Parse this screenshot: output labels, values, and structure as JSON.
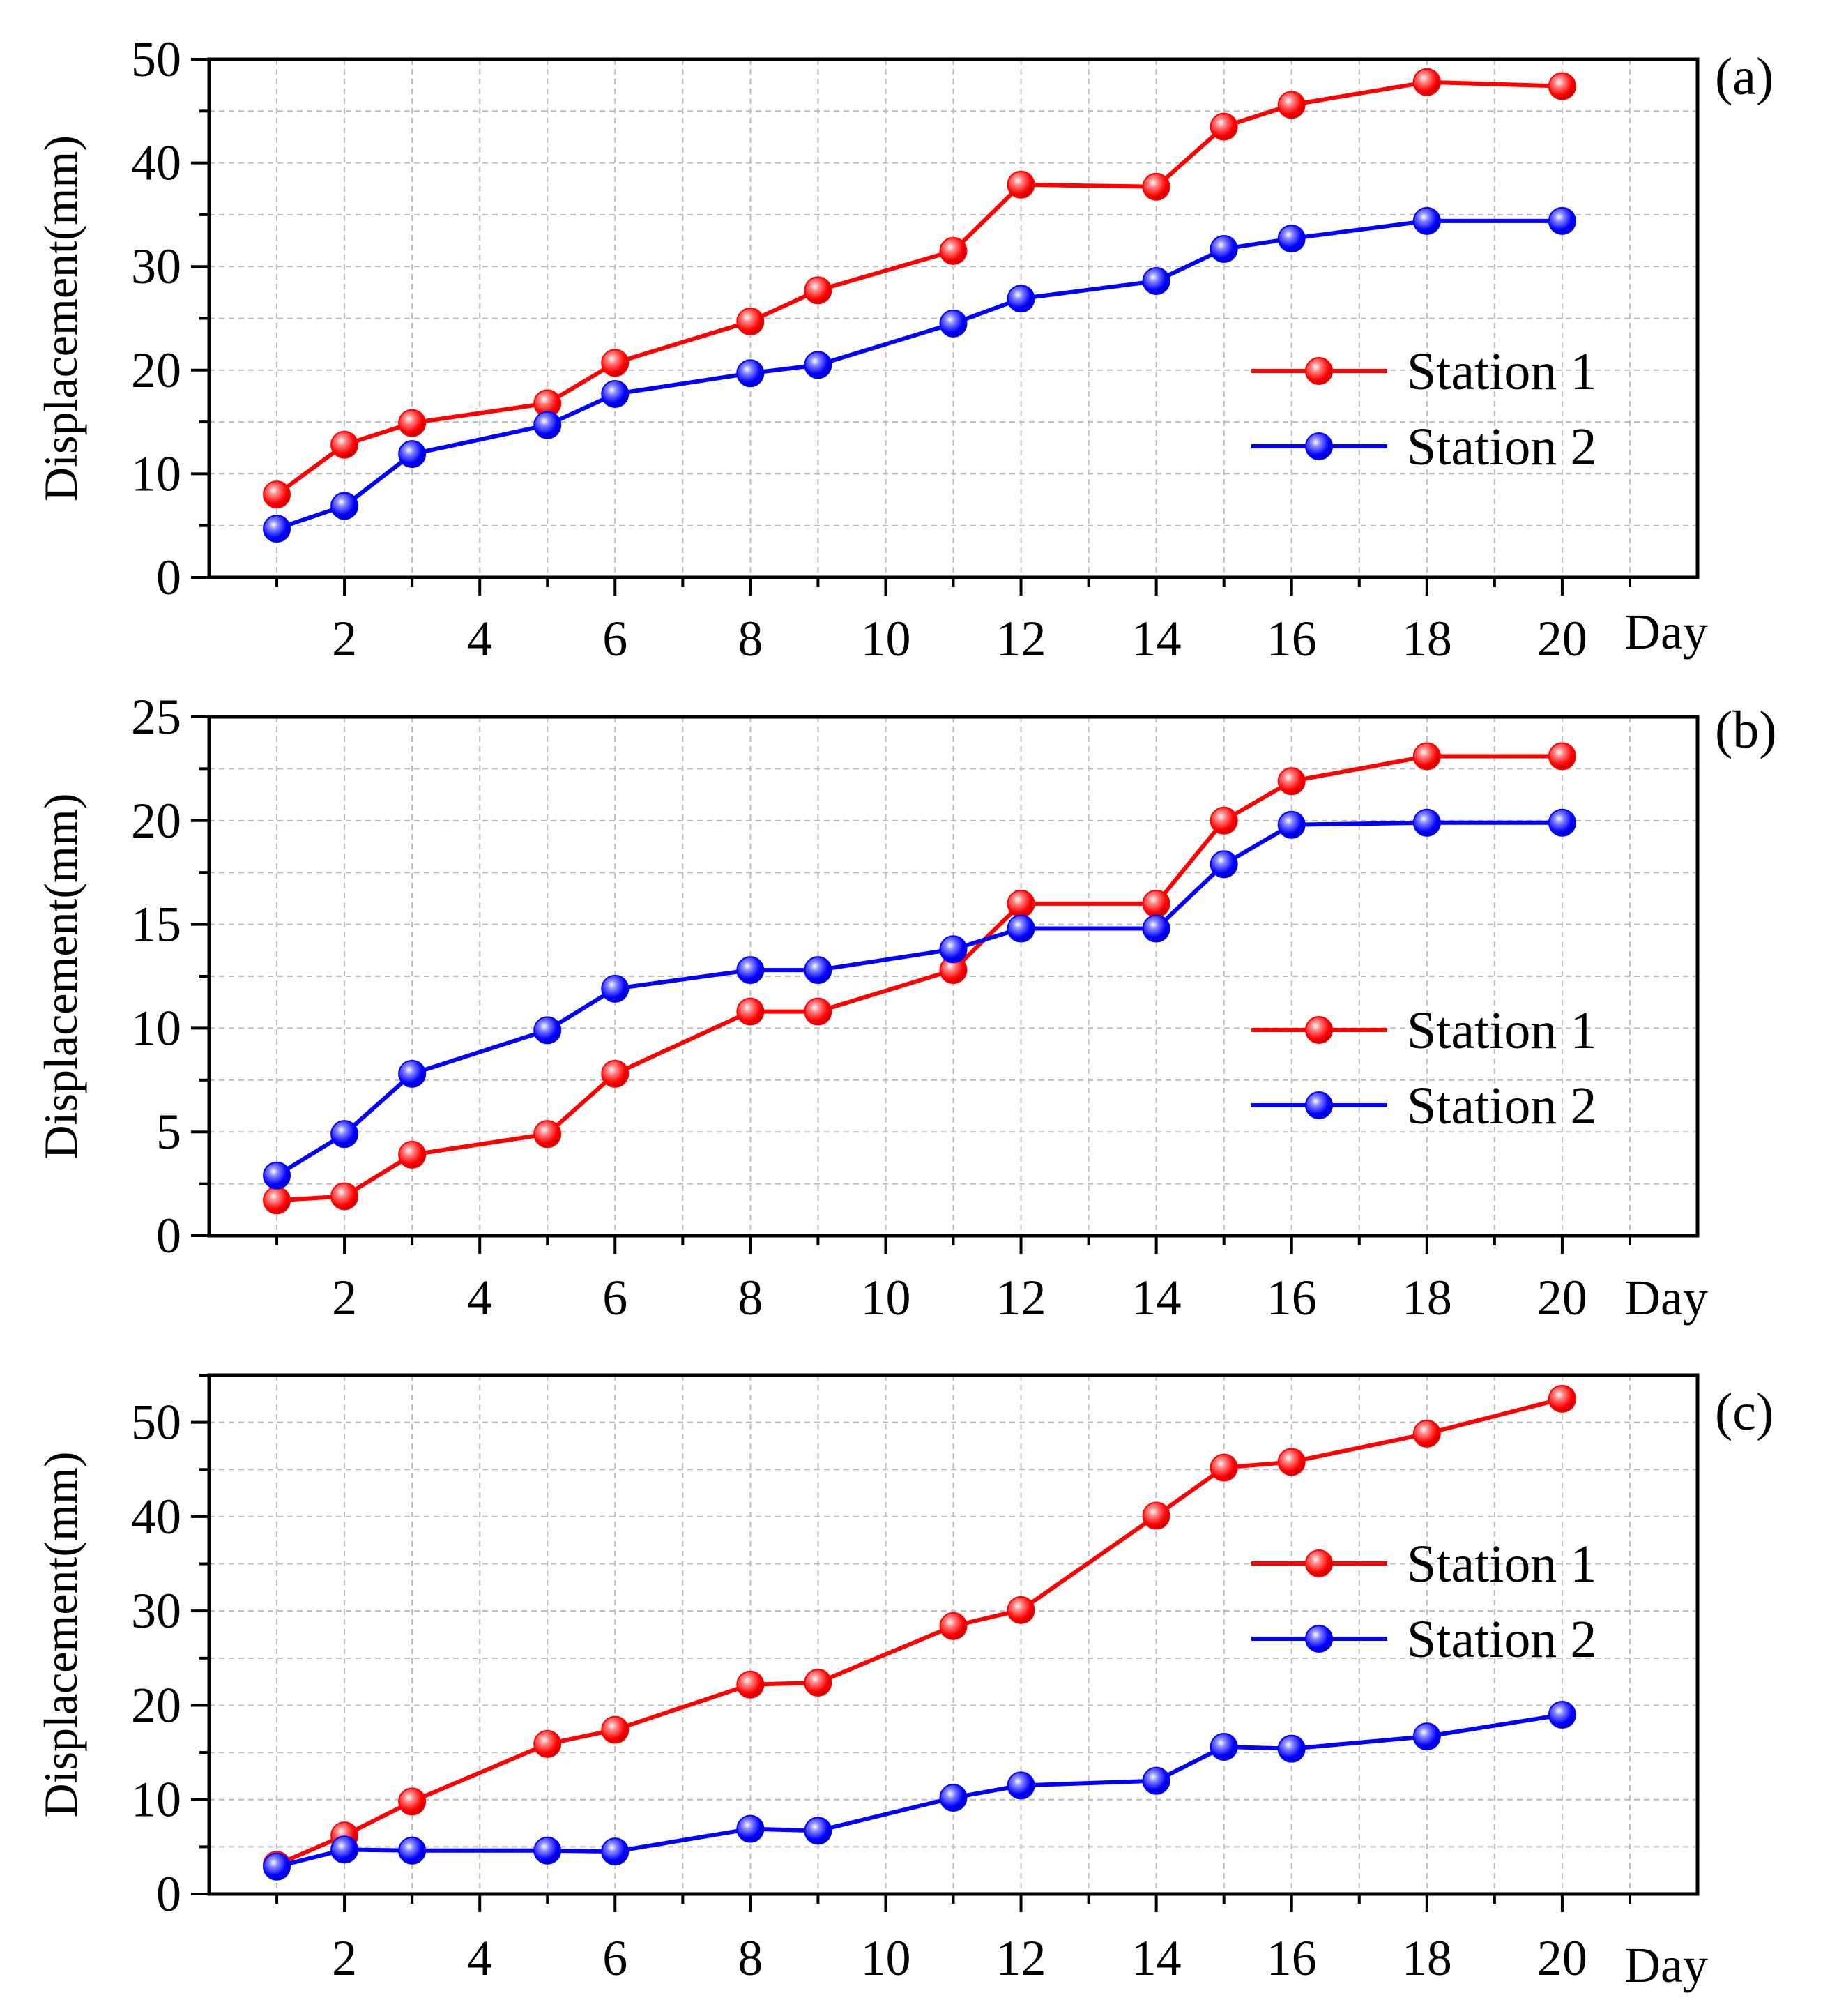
{
  "figure": {
    "colors": {
      "station1": "#ff0000",
      "station2": "#0000ff",
      "grid": "#bbbbbb",
      "axis": "#000000"
    }
  },
  "chart_data": [
    {
      "type": "line",
      "panel_label": "(a)",
      "ylabel": "Displacement(mm)",
      "xlabel": "Day",
      "ylim": [
        0,
        50
      ],
      "yticks": [
        0,
        10,
        20,
        30,
        40,
        50
      ],
      "xlim": [
        0,
        22
      ],
      "xticks": [
        2,
        4,
        6,
        8,
        10,
        12,
        14,
        16,
        18,
        20
      ],
      "grid": true,
      "legend_position": "right",
      "series": [
        {
          "name": "Station 1",
          "color": "#ff0000",
          "x": [
            1,
            2,
            3,
            5,
            6,
            8,
            9,
            11,
            12,
            14,
            15,
            16,
            18,
            20
          ],
          "y": [
            8,
            12.8,
            14.9,
            16.8,
            20.7,
            24.7,
            27.7,
            31.5,
            37.9,
            37.7,
            43.5,
            45.6,
            47.8,
            47.4
          ]
        },
        {
          "name": "Station 2",
          "color": "#0000ff",
          "x": [
            1,
            2,
            3,
            5,
            6,
            8,
            9,
            11,
            12,
            14,
            15,
            16,
            18,
            20
          ],
          "y": [
            4.7,
            6.9,
            11.9,
            14.7,
            17.7,
            19.7,
            20.5,
            24.5,
            26.9,
            28.6,
            31.7,
            32.7,
            34.4,
            34.4
          ]
        }
      ]
    },
    {
      "type": "line",
      "panel_label": "(b)",
      "ylabel": "Displacement(mm)",
      "xlabel": "Day",
      "ylim": [
        0,
        25
      ],
      "yticks": [
        0,
        5,
        10,
        15,
        20,
        25
      ],
      "xlim": [
        0,
        22
      ],
      "xticks": [
        2,
        4,
        6,
        8,
        10,
        12,
        14,
        16,
        18,
        20
      ],
      "grid": true,
      "legend_position": "right",
      "series": [
        {
          "name": "Station 1",
          "color": "#ff0000",
          "x": [
            1,
            2,
            3,
            5,
            6,
            8,
            9,
            11,
            12,
            14,
            15,
            16,
            18,
            20
          ],
          "y": [
            1.7,
            1.9,
            3.9,
            4.9,
            7.8,
            10.8,
            10.8,
            12.8,
            16.0,
            16.0,
            20.0,
            21.9,
            23.1,
            23.1
          ]
        },
        {
          "name": "Station 2",
          "color": "#0000ff",
          "x": [
            1,
            2,
            3,
            5,
            6,
            8,
            9,
            11,
            12,
            14,
            15,
            16,
            18,
            20
          ],
          "y": [
            2.9,
            4.9,
            7.8,
            9.9,
            11.9,
            12.8,
            12.8,
            13.8,
            14.8,
            14.8,
            17.9,
            19.8,
            19.9,
            19.9
          ]
        }
      ]
    },
    {
      "type": "line",
      "panel_label": "(c)",
      "ylabel": "Displacement(mm)",
      "xlabel": "Day",
      "ylim": [
        0,
        55
      ],
      "yticks": [
        0,
        10,
        20,
        30,
        40,
        50
      ],
      "xlim": [
        0,
        22
      ],
      "xticks": [
        2,
        4,
        6,
        8,
        10,
        12,
        14,
        16,
        18,
        20
      ],
      "grid": true,
      "legend_position": "right",
      "series": [
        {
          "name": "Station 1",
          "color": "#ff0000",
          "x": [
            1,
            2,
            3,
            5,
            6,
            8,
            9,
            11,
            12,
            14,
            15,
            16,
            18,
            20
          ],
          "y": [
            3.1,
            6.2,
            9.8,
            15.9,
            17.4,
            22.2,
            22.4,
            28.4,
            30.1,
            40.1,
            45.2,
            45.8,
            48.8,
            52.5
          ]
        },
        {
          "name": "Station 2",
          "color": "#0000ff",
          "x": [
            1,
            2,
            3,
            5,
            6,
            8,
            9,
            11,
            12,
            14,
            15,
            16,
            18,
            20
          ],
          "y": [
            2.9,
            4.7,
            4.6,
            4.6,
            4.5,
            6.9,
            6.7,
            10.2,
            11.5,
            12.0,
            15.6,
            15.4,
            16.7,
            19.0
          ]
        }
      ]
    }
  ]
}
